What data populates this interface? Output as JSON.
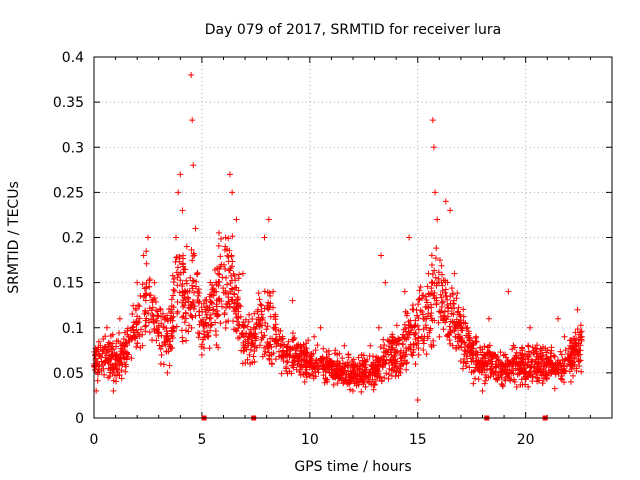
{
  "chart_data": {
    "type": "scatter",
    "title": "Day 079 of 2017, SRMTID for receiver lura",
    "xlabel": "GPS time / hours",
    "ylabel": "SRMTID / TECUs",
    "xlim": [
      0,
      24
    ],
    "ylim": [
      0,
      0.4
    ],
    "xticks": [
      0,
      5,
      10,
      15,
      20
    ],
    "yticks": [
      0,
      0.05,
      0.1,
      0.15,
      0.2,
      0.25,
      0.3,
      0.35,
      0.4
    ],
    "xtick_labels": [
      "0",
      "5",
      "10",
      "15",
      "20"
    ],
    "ytick_labels": [
      "0",
      "0.05",
      "0.1",
      "0.15",
      "0.2",
      "0.25",
      "0.3",
      "0.35",
      "0.4"
    ],
    "grid": true,
    "marker": "+",
    "color": "#ff0000",
    "baseline_markers_x": [
      5.1,
      7.4,
      18.2,
      20.9
    ],
    "envelope": {
      "x": [
        0.0,
        0.5,
        1.0,
        1.5,
        2.0,
        2.5,
        3.0,
        3.5,
        3.9,
        4.3,
        4.6,
        5.0,
        5.5,
        6.0,
        6.5,
        7.0,
        7.5,
        8.0,
        8.5,
        9.0,
        9.5,
        10.0,
        10.5,
        11.0,
        11.5,
        12.0,
        12.5,
        13.0,
        13.5,
        14.0,
        14.5,
        15.0,
        15.5,
        15.9,
        16.3,
        16.8,
        17.5,
        18.0,
        18.5,
        19.0,
        19.5,
        20.0,
        20.5,
        21.0,
        21.5,
        22.0,
        22.6
      ],
      "center": [
        0.06,
        0.07,
        0.06,
        0.08,
        0.1,
        0.13,
        0.1,
        0.09,
        0.16,
        0.12,
        0.15,
        0.1,
        0.12,
        0.15,
        0.14,
        0.08,
        0.09,
        0.1,
        0.08,
        0.07,
        0.07,
        0.06,
        0.06,
        0.055,
        0.05,
        0.05,
        0.05,
        0.05,
        0.07,
        0.07,
        0.09,
        0.1,
        0.12,
        0.14,
        0.12,
        0.1,
        0.07,
        0.06,
        0.06,
        0.05,
        0.06,
        0.055,
        0.06,
        0.06,
        0.055,
        0.06,
        0.08
      ],
      "spread": [
        0.02,
        0.03,
        0.025,
        0.03,
        0.04,
        0.05,
        0.04,
        0.04,
        0.07,
        0.05,
        0.06,
        0.04,
        0.05,
        0.06,
        0.05,
        0.03,
        0.04,
        0.05,
        0.03,
        0.025,
        0.025,
        0.02,
        0.02,
        0.02,
        0.02,
        0.02,
        0.02,
        0.02,
        0.03,
        0.03,
        0.04,
        0.04,
        0.05,
        0.06,
        0.05,
        0.04,
        0.03,
        0.025,
        0.025,
        0.02,
        0.025,
        0.025,
        0.025,
        0.025,
        0.02,
        0.025,
        0.03
      ]
    },
    "series": [
      {
        "name": "SRMTID",
        "points": [
          [
            0.1,
            0.03
          ],
          [
            0.3,
            0.08
          ],
          [
            0.6,
            0.1
          ],
          [
            0.9,
            0.03
          ],
          [
            1.2,
            0.11
          ],
          [
            1.6,
            0.09
          ],
          [
            2.0,
            0.15
          ],
          [
            2.3,
            0.18
          ],
          [
            2.5,
            0.2
          ],
          [
            2.8,
            0.15
          ],
          [
            3.1,
            0.06
          ],
          [
            3.4,
            0.05
          ],
          [
            3.6,
            0.12
          ],
          [
            3.8,
            0.2
          ],
          [
            3.9,
            0.25
          ],
          [
            4.0,
            0.27
          ],
          [
            4.1,
            0.23
          ],
          [
            4.3,
            0.19
          ],
          [
            4.5,
            0.38
          ],
          [
            4.55,
            0.33
          ],
          [
            4.6,
            0.28
          ],
          [
            4.7,
            0.21
          ],
          [
            4.8,
            0.16
          ],
          [
            5.0,
            0.07
          ],
          [
            5.3,
            0.09
          ],
          [
            5.6,
            0.14
          ],
          [
            5.9,
            0.17
          ],
          [
            6.1,
            0.2
          ],
          [
            6.3,
            0.27
          ],
          [
            6.4,
            0.25
          ],
          [
            6.6,
            0.22
          ],
          [
            6.9,
            0.16
          ],
          [
            7.2,
            0.07
          ],
          [
            7.6,
            0.12
          ],
          [
            7.9,
            0.2
          ],
          [
            8.1,
            0.22
          ],
          [
            8.3,
            0.14
          ],
          [
            8.6,
            0.09
          ],
          [
            8.9,
            0.07
          ],
          [
            9.2,
            0.13
          ],
          [
            9.5,
            0.06
          ],
          [
            9.8,
            0.05
          ],
          [
            10.2,
            0.09
          ],
          [
            10.5,
            0.1
          ],
          [
            10.8,
            0.04
          ],
          [
            11.2,
            0.05
          ],
          [
            11.6,
            0.08
          ],
          [
            12.0,
            0.03
          ],
          [
            12.4,
            0.07
          ],
          [
            12.8,
            0.08
          ],
          [
            13.2,
            0.1
          ],
          [
            13.3,
            0.18
          ],
          [
            13.5,
            0.15
          ],
          [
            13.8,
            0.09
          ],
          [
            14.2,
            0.05
          ],
          [
            14.4,
            0.14
          ],
          [
            14.6,
            0.2
          ],
          [
            14.8,
            0.12
          ],
          [
            15.0,
            0.02
          ],
          [
            15.3,
            0.11
          ],
          [
            15.5,
            0.16
          ],
          [
            15.7,
            0.33
          ],
          [
            15.75,
            0.3
          ],
          [
            15.8,
            0.25
          ],
          [
            15.9,
            0.22
          ],
          [
            16.1,
            0.15
          ],
          [
            16.3,
            0.24
          ],
          [
            16.5,
            0.23
          ],
          [
            16.7,
            0.16
          ],
          [
            16.9,
            0.08
          ],
          [
            17.3,
            0.1
          ],
          [
            17.7,
            0.09
          ],
          [
            18.0,
            0.03
          ],
          [
            18.3,
            0.11
          ],
          [
            18.6,
            0.07
          ],
          [
            18.9,
            0.05
          ],
          [
            19.2,
            0.14
          ],
          [
            19.5,
            0.04
          ],
          [
            19.8,
            0.06
          ],
          [
            20.2,
            0.1
          ],
          [
            20.5,
            0.05
          ],
          [
            20.8,
            0.07
          ],
          [
            21.2,
            0.05
          ],
          [
            21.5,
            0.11
          ],
          [
            21.8,
            0.09
          ],
          [
            22.1,
            0.04
          ],
          [
            22.4,
            0.12
          ],
          [
            22.6,
            0.09
          ]
        ]
      }
    ]
  }
}
